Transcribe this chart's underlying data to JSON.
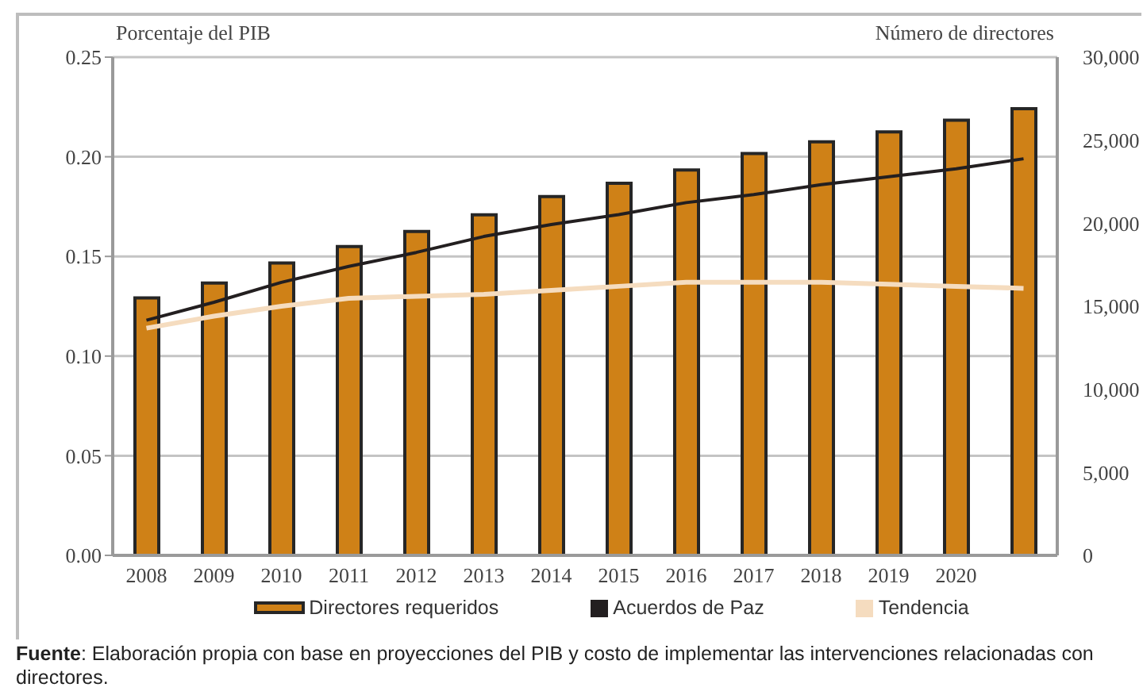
{
  "chart_data": {
    "type": "bar",
    "ylabel": "Porcentaje del PIB",
    "y2label": "Número de directores",
    "categories": [
      "2008",
      "2009",
      "2010",
      "2011",
      "2012",
      "2013",
      "2014",
      "2015",
      "2016",
      "2017",
      "2018",
      "2019",
      "2020",
      null
    ],
    "series": [
      {
        "name": "Directores requeridos",
        "axis": "y2",
        "color": "#cf8117",
        "values": [
          15500,
          16400,
          17600,
          18600,
          19500,
          20500,
          21600,
          22400,
          23200,
          24200,
          24900,
          25500,
          26200,
          26900
        ]
      },
      {
        "name": "Acuerdos de Paz",
        "type": "line",
        "color": "#231f20",
        "values": [
          0.118,
          0.127,
          0.137,
          0.145,
          0.152,
          0.16,
          0.166,
          0.171,
          0.177,
          0.181,
          0.186,
          0.19,
          0.194,
          0.199
        ]
      },
      {
        "name": "Tendencia",
        "type": "line",
        "color": "#f5dcbf",
        "values": [
          0.114,
          0.12,
          0.125,
          0.129,
          0.13,
          0.131,
          0.133,
          0.135,
          0.137,
          0.137,
          0.137,
          0.136,
          0.135,
          0.134
        ]
      }
    ],
    "ylim": [
      0,
      0.25
    ],
    "yticks": [
      {
        "value": 0,
        "label": "0.00"
      },
      {
        "value": 0.05,
        "label": "0.05"
      },
      {
        "value": 0.1,
        "label": "0.10"
      },
      {
        "value": 0.15,
        "label": "0.15"
      },
      {
        "value": 0.2,
        "label": "0.20"
      },
      {
        "value": 0.25,
        "label": "0.25"
      }
    ],
    "y2lim": [
      0,
      30000
    ],
    "y2ticks": [
      0,
      {
        "value": 5000,
        "label": "5,000"
      },
      {
        "value": 10000,
        "label": "10,000"
      },
      {
        "value": 15000,
        "label": "15,000"
      },
      {
        "value": 20000,
        "label": "20,000"
      },
      {
        "value": 25000,
        "label": "25,000"
      },
      {
        "value": 30000,
        "label": "30,000"
      }
    ],
    "grid": "y",
    "legend": "bottom",
    "marker": "none",
    "line_style": "solid",
    "annotations": [
      "Fuente: Elaboración propia con base en proyecciones del PIB y costo de implementar las intervenciones relacionadas con directores."
    ]
  }
}
